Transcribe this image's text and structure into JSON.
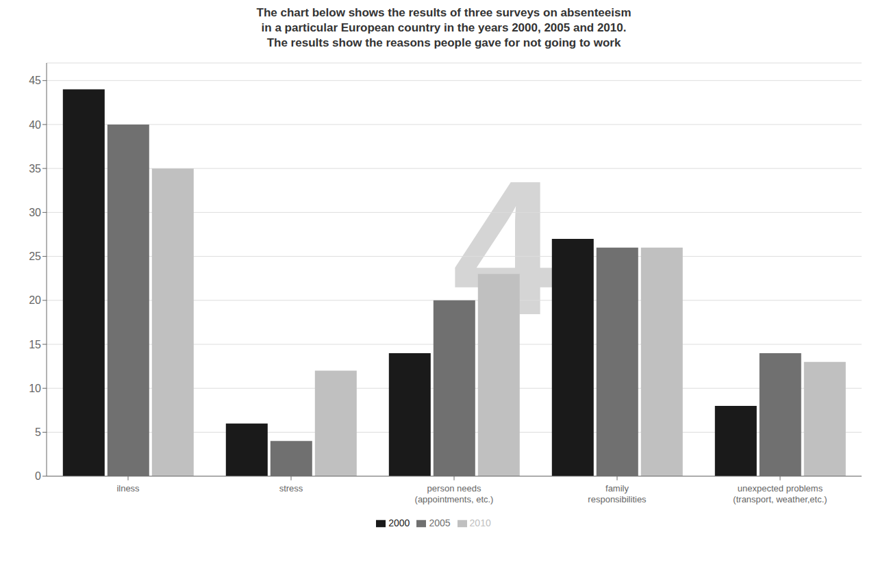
{
  "chart_data": {
    "type": "bar",
    "title": "The chart below shows the results of three surveys on absenteeism\nin a particular European country in the years 2000, 2005 and 2010.\nThe results show the reasons people gave for not going to work",
    "categories": [
      "ilness",
      "stress",
      "person needs\n(appointments, etc.)",
      "family\nresponsibilities",
      "unexpected problems\n(transport, weather,etc.)"
    ],
    "series": [
      {
        "name": "2000",
        "color": "#1a1a1a",
        "values": [
          44,
          6,
          14,
          27,
          8
        ]
      },
      {
        "name": "2005",
        "color": "#707070",
        "values": [
          40,
          4,
          20,
          26,
          14
        ]
      },
      {
        "name": "2010",
        "color": "#c0c0c0",
        "values": [
          35,
          12,
          23,
          26,
          13
        ]
      }
    ],
    "ylim": [
      0,
      47
    ],
    "yticks": [
      0,
      5,
      10,
      15,
      20,
      25,
      30,
      35,
      40,
      45
    ],
    "grid": true,
    "legend": "bottom",
    "annotations": [
      {
        "text": "4",
        "color": "#d5d5d5"
      }
    ]
  }
}
